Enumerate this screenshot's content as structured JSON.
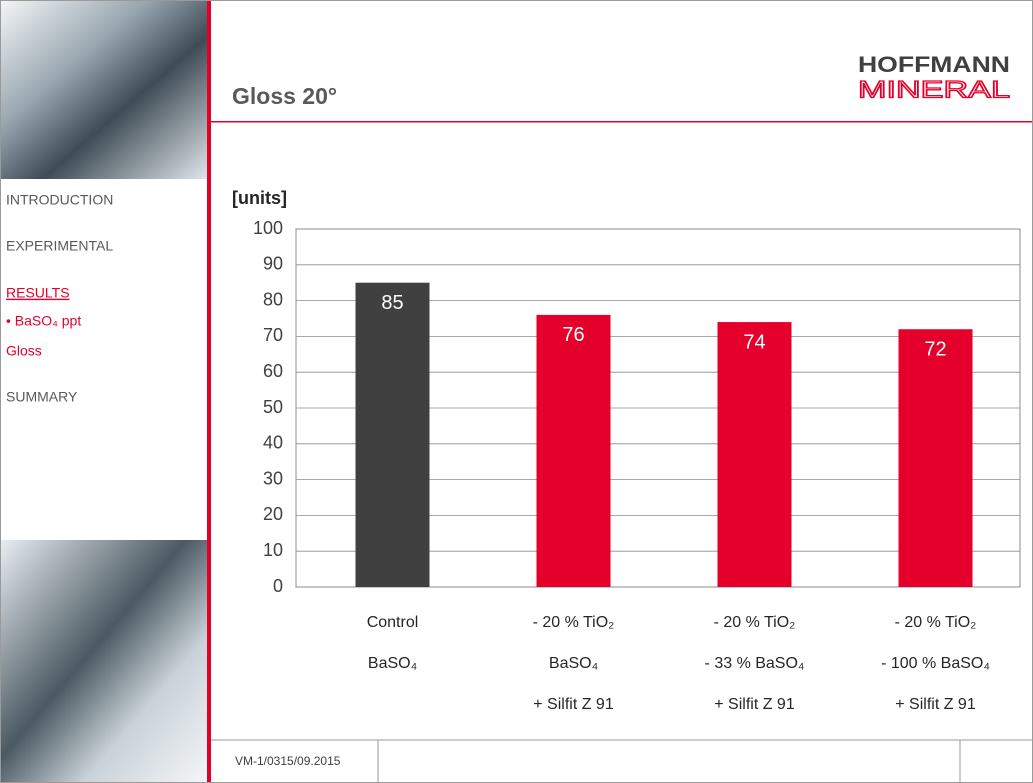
{
  "nav": [
    "INTRODUCTION",
    "EXPERIMENTAL",
    "RESULTS",
    "• BaSO₄ ppt",
    "Gloss",
    "SUMMARY"
  ],
  "header": {
    "title": "Gloss 20°",
    "logo": [
      "HOFFMANN",
      "MINERAL"
    ]
  },
  "footer": {
    "code": "VM-1/0315/09.2015"
  },
  "chart_data": {
    "type": "bar",
    "ylabel": "[units]",
    "categories": [
      [
        "Control",
        "BaSO₄"
      ],
      [
        "- 20 % TiO₂",
        "BaSO₄",
        "+ Silfit Z 91"
      ],
      [
        "- 20 % TiO₂",
        "- 33 % BaSO₄",
        "+ Silfit Z 91"
      ],
      [
        "- 20 % TiO₂",
        "- 100 % BaSO₄",
        "+ Silfit Z 91"
      ]
    ],
    "values": [
      85,
      76,
      74,
      72
    ],
    "colors": [
      "#404040",
      "#e4002b",
      "#e4002b",
      "#e4002b"
    ],
    "ylim": [
      0,
      100
    ],
    "yticks": [
      0,
      10,
      20,
      30,
      40,
      50,
      60,
      70,
      80,
      90,
      100
    ],
    "grid": true
  }
}
